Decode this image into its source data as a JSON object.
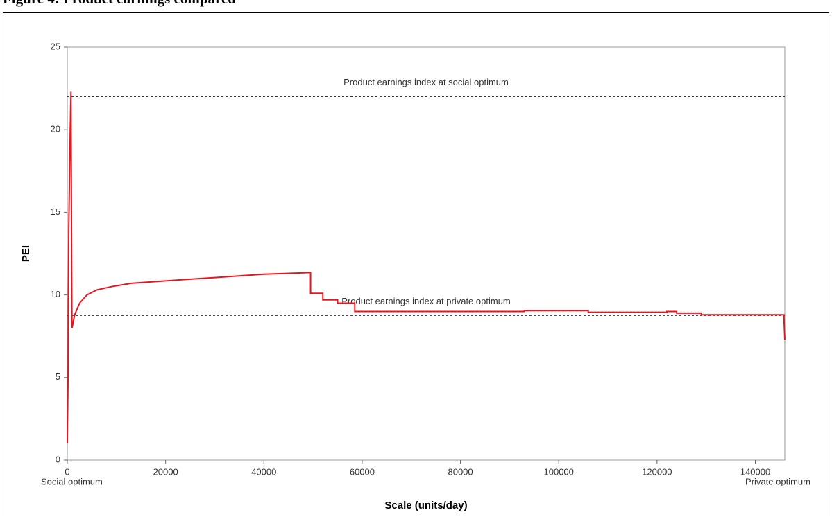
{
  "chart_data": {
    "type": "line",
    "title": "Figure 4: Product earnings compared",
    "x_label": "Scale (units/day)",
    "y_label": "PEI",
    "xlim": [
      0,
      146000
    ],
    "xticks": [
      0,
      20000,
      40000,
      60000,
      80000,
      100000,
      120000,
      140000
    ],
    "ylim": [
      0,
      25
    ],
    "yticks": [
      0,
      5,
      10,
      15,
      20,
      25
    ],
    "grid": false,
    "series": [
      {
        "name": "PEI",
        "color": "#e8141e",
        "x": [
          0,
          150,
          300,
          450,
          600,
          750,
          850,
          950,
          1100,
          1500,
          2500,
          4000,
          6000,
          9000,
          13000,
          20000,
          30000,
          40000,
          49500,
          49500,
          52000,
          52000,
          55000,
          55000,
          58500,
          58500,
          93000,
          93000,
          106000,
          106000,
          122000,
          122000,
          124000,
          124000,
          129000,
          129000,
          145800,
          146000
        ],
        "values": [
          1,
          5,
          14,
          17,
          20,
          22.3,
          14.5,
          8,
          8.2,
          8.8,
          9.5,
          10,
          10.3,
          10.5,
          10.7,
          10.85,
          11.05,
          11.25,
          11.35,
          10.1,
          10.1,
          9.7,
          9.7,
          9.5,
          9.5,
          9.0,
          9.0,
          9.05,
          9.05,
          8.95,
          8.95,
          9.0,
          9.0,
          8.9,
          8.9,
          8.8,
          8.8,
          7.3
        ]
      }
    ],
    "hlines": [
      {
        "y": 22,
        "label": "Product earnings index at social optimum"
      },
      {
        "y": 8.75,
        "label": "Product earnings index at private optimum"
      }
    ],
    "annotations": [
      {
        "text": "Social optimum",
        "x": 0
      },
      {
        "text": "Private optimum",
        "x": 146000
      }
    ]
  }
}
